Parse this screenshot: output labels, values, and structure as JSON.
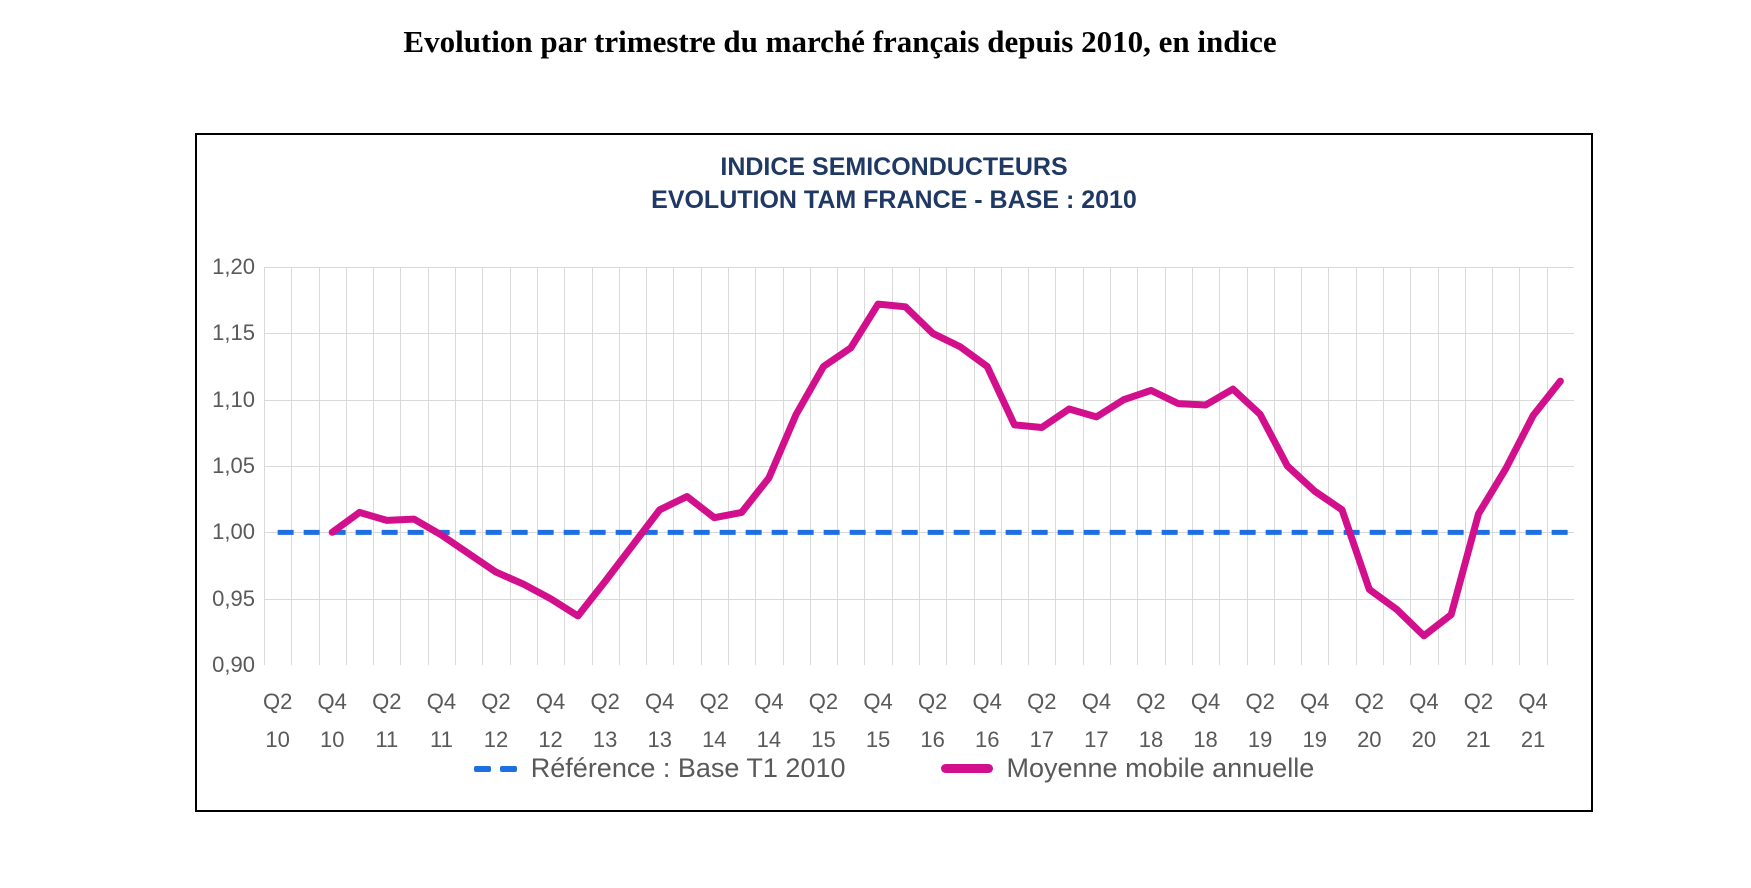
{
  "page_title": "Evolution par trimestre du marché français depuis 2010, en indice",
  "chart": {
    "title_line1": "INDICE SEMICONDUCTEURS",
    "title_line2": "EVOLUTION TAM FRANCE - BASE : 2010"
  },
  "legend": {
    "reference_label": "Référence : Base T1 2010",
    "series_label": "Moyenne mobile annuelle"
  },
  "colors": {
    "series_line": "#D20F8C",
    "reference_line": "#1E6FE1",
    "chart_title": "#1F3864",
    "axis_text": "#595959",
    "grid": "#D9D9D9",
    "frame": "#000000"
  },
  "chart_data": {
    "type": "line",
    "title": "INDICE SEMICONDUCTEURS — EVOLUTION TAM FRANCE - BASE : 2010",
    "ylim": [
      0.9,
      1.2
    ],
    "ytick_step": 0.05,
    "ytick_labels": [
      "1,20",
      "1,15",
      "1,10",
      "1,05",
      "1,00",
      "0,95",
      "0,90"
    ],
    "grid": true,
    "legend_position": "bottom",
    "x_slot_count": 48,
    "categories": [
      "Q2 10",
      "Q4 10",
      "Q2 11",
      "Q4 11",
      "Q2 12",
      "Q4 12",
      "Q2 13",
      "Q4 13",
      "Q2 14",
      "Q4 14",
      "Q2 15",
      "Q4 15",
      "Q2 16",
      "Q4 16",
      "Q2 17",
      "Q4 17",
      "Q2 18",
      "Q4 18",
      "Q2 19",
      "Q4 19",
      "Q2 20",
      "Q4 20",
      "Q2 21",
      "Q4 21"
    ],
    "category_slot_step": 2,
    "series": [
      {
        "name": "Référence : Base T1 2010",
        "style": "dashed",
        "color": "#1E6FE1",
        "constant_value": 1.0
      },
      {
        "name": "Moyenne mobile annuelle",
        "style": "solid",
        "color": "#D20F8C",
        "start_slot": 2,
        "point_quarters": [
          "Q4 10",
          "Q1 11",
          "Q2 11",
          "Q3 11",
          "Q4 11",
          "Q1 12",
          "Q2 12",
          "Q3 12",
          "Q4 12",
          "Q1 13",
          "Q2 13",
          "Q3 13",
          "Q4 13",
          "Q1 14",
          "Q2 14",
          "Q3 14",
          "Q4 14",
          "Q1 15",
          "Q2 15",
          "Q3 15",
          "Q4 15",
          "Q1 16",
          "Q2 16",
          "Q3 16",
          "Q4 16",
          "Q1 17",
          "Q2 17",
          "Q3 17",
          "Q4 17",
          "Q1 18",
          "Q2 18",
          "Q3 18",
          "Q4 18",
          "Q1 19",
          "Q2 19",
          "Q3 19",
          "Q4 19",
          "Q1 20",
          "Q2 20",
          "Q3 20",
          "Q4 20",
          "Q1 21",
          "Q2 21",
          "Q3 21",
          "Q4 21",
          "Q1 22"
        ],
        "values": [
          1.0,
          1.015,
          1.009,
          1.01,
          0.998,
          0.984,
          0.97,
          0.961,
          0.95,
          0.937,
          0.963,
          0.99,
          1.017,
          1.027,
          1.011,
          1.015,
          1.041,
          1.089,
          1.125,
          1.139,
          1.172,
          1.17,
          1.15,
          1.14,
          1.125,
          1.081,
          1.079,
          1.093,
          1.087,
          1.1,
          1.107,
          1.097,
          1.096,
          1.108,
          1.089,
          1.05,
          1.031,
          1.017,
          0.957,
          0.942,
          0.922,
          0.938,
          1.014,
          1.048,
          1.088,
          1.114
        ]
      }
    ]
  }
}
